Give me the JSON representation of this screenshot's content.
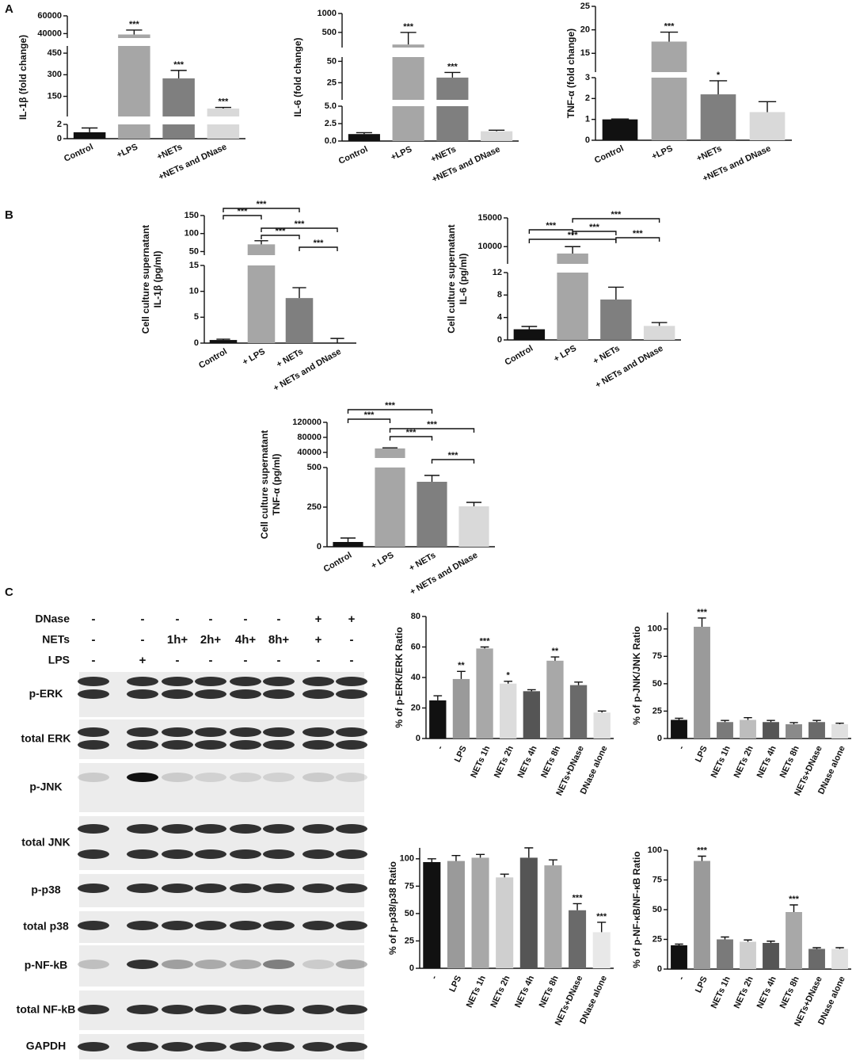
{
  "panel_labels": [
    "A",
    "B",
    "C"
  ],
  "chart_data": [
    {
      "type": "bar",
      "y_label": "IL-1β (fold change)",
      "categories": [
        "Control",
        "+LPS",
        "+NETs",
        "+NETs and DNase"
      ],
      "colors": [
        "#111111",
        "#a6a6a6",
        "#7f7f7f",
        "#d9d9d9"
      ],
      "values": [
        0.9,
        39000,
        275,
        65
      ],
      "errors": [
        0.6,
        5000,
        55,
        8
      ],
      "star_labels": [
        null,
        "***",
        "***",
        "***"
      ],
      "segments": [
        {
          "ylim": [
            0,
            2
          ],
          "yticks": [
            0,
            2
          ]
        },
        {
          "ylim": [
            10,
            500
          ],
          "yticks": [
            150,
            300,
            450
          ]
        },
        {
          "ylim": [
            35000,
            60000
          ],
          "yticks": [
            40000,
            60000
          ]
        }
      ]
    },
    {
      "type": "bar",
      "y_label": "IL-6 (fold change)",
      "categories": [
        "Control",
        "+LPS",
        "+NETs",
        "+NETs and DNase"
      ],
      "colors": [
        "#111111",
        "#a6a6a6",
        "#7f7f7f",
        "#d9d9d9"
      ],
      "values": [
        1.0,
        180,
        31,
        1.4
      ],
      "errors": [
        0.2,
        320,
        6,
        0.15
      ],
      "star_labels": [
        null,
        "***",
        "***",
        null
      ],
      "segments": [
        {
          "ylim": [
            0,
            5
          ],
          "yticks": [
            {
              "value": 0,
              "label": "0.0"
            },
            2.5,
            {
              "value": 5,
              "label": "5.0"
            }
          ]
        },
        {
          "ylim": [
            5,
            55
          ],
          "yticks": [
            25,
            50
          ]
        },
        {
          "ylim": [
            100,
            1000
          ],
          "yticks": [
            500,
            1000
          ]
        }
      ]
    },
    {
      "type": "bar",
      "y_label": "TNF-α (fold change)",
      "categories": [
        "Control",
        "+LPS",
        "+NETs",
        "+NETs and DNase"
      ],
      "colors": [
        "#111111",
        "#a6a6a6",
        "#7f7f7f",
        "#d9d9d9"
      ],
      "values": [
        1.0,
        17.5,
        2.2,
        1.35
      ],
      "errors": [
        0.02,
        2,
        0.65,
        0.5
      ],
      "star_labels": [
        null,
        "***",
        "*",
        null
      ],
      "segments": [
        {
          "ylim": [
            0,
            3
          ],
          "yticks": [
            0,
            1,
            2,
            3
          ]
        },
        {
          "ylim": [
            11,
            25
          ],
          "yticks": [
            15,
            20,
            25
          ]
        }
      ]
    },
    {
      "type": "bar",
      "y_label": [
        "Cell culture supernatant",
        "IL-1β (pg/ml)"
      ],
      "categories": [
        "Control",
        "+ LPS",
        "+ NETs",
        "+ NETs and DNase"
      ],
      "colors": [
        "#111111",
        "#a6a6a6",
        "#7f7f7f",
        "#d9d9d9"
      ],
      "values": [
        0.6,
        70,
        8.7,
        0
      ],
      "errors": [
        0.15,
        10,
        2,
        0.9
      ],
      "segments": [
        {
          "ylim": [
            0,
            15
          ],
          "yticks": [
            0,
            5,
            10,
            15
          ]
        },
        {
          "ylim": [
            40,
            150
          ],
          "yticks": [
            50,
            100,
            150
          ]
        }
      ],
      "comparisons": [
        {
          "between": [
            0,
            2
          ],
          "label": "***"
        },
        {
          "between": [
            0,
            1
          ],
          "label": "***"
        },
        {
          "between": [
            1,
            3
          ],
          "label": "***"
        },
        {
          "between": [
            1,
            2
          ],
          "label": "***"
        },
        {
          "between": [
            2,
            3
          ],
          "label": "***"
        }
      ]
    },
    {
      "type": "bar",
      "y_label": [
        "Cell culture supernatant",
        "IL-6 (pg/ml)"
      ],
      "categories": [
        "Control",
        "+ LPS",
        "+ NETs",
        "+ NETs and DNase"
      ],
      "colors": [
        "#111111",
        "#a6a6a6",
        "#7f7f7f",
        "#d9d9d9"
      ],
      "values": [
        1.9,
        8800,
        7.2,
        2.5
      ],
      "errors": [
        0.5,
        1200,
        2.2,
        0.6
      ],
      "segments": [
        {
          "ylim": [
            0,
            12
          ],
          "yticks": [
            0,
            4,
            8,
            12
          ]
        },
        {
          "ylim": [
            7000,
            15000
          ],
          "yticks": [
            10000,
            15000
          ]
        }
      ],
      "comparisons": [
        {
          "between": [
            1,
            3
          ],
          "label": "***"
        },
        {
          "between": [
            0,
            1
          ],
          "label": "***"
        },
        {
          "between": [
            1,
            2
          ],
          "label": "***"
        },
        {
          "between": [
            0,
            2
          ],
          "label": "***"
        },
        {
          "between": [
            2,
            3
          ],
          "label": "***"
        }
      ]
    },
    {
      "type": "bar",
      "y_label": [
        "Cell culture supernatant",
        "TNF-α (pg/ml)"
      ],
      "categories": [
        "Control",
        "+ LPS",
        "+ NETs",
        "+ NETs and DNase"
      ],
      "colors": [
        "#111111",
        "#a6a6a6",
        "#7f7f7f",
        "#d9d9d9"
      ],
      "values": [
        30,
        50500,
        410,
        255
      ],
      "errors": [
        25,
        1500,
        40,
        25
      ],
      "segments": [
        {
          "ylim": [
            0,
            500
          ],
          "yticks": [
            0,
            250,
            500
          ]
        },
        {
          "ylim": [
            25000,
            120000
          ],
          "yticks": [
            40000,
            80000,
            120000
          ]
        }
      ],
      "comparisons": [
        {
          "between": [
            0,
            2
          ],
          "label": "***"
        },
        {
          "between": [
            0,
            1
          ],
          "label": "***"
        },
        {
          "between": [
            1,
            3
          ],
          "label": "***"
        },
        {
          "between": [
            1,
            2
          ],
          "label": "***"
        },
        {
          "between": [
            2,
            3
          ],
          "label": "***"
        }
      ]
    },
    {
      "type": "bar",
      "y_label": "% of p-ERK/ERK Ratio",
      "categories": [
        "-",
        "LPS",
        "NETs 1h",
        "NETs 2h",
        "NETs 4h",
        "NETs 8h",
        "NETs+DNase",
        "DNase alone"
      ],
      "colors": [
        "#111111",
        "#9a9a9a",
        "#a8a8a8",
        "#dcdcdc",
        "#555555",
        "#a8a8a8",
        "#6a6a6a",
        "#e0e0e0"
      ],
      "values": [
        25,
        39,
        59,
        36,
        31,
        51,
        35,
        17
      ],
      "errors": [
        3,
        5,
        1,
        1.5,
        1,
        2.5,
        2,
        1
      ],
      "star_labels": [
        null,
        "**",
        "***",
        "*",
        null,
        "**",
        null,
        null
      ],
      "ylim": [
        0,
        80
      ],
      "yticks": [
        0,
        20,
        40,
        60,
        80
      ]
    },
    {
      "type": "bar",
      "y_label": "% of p-JNK/JNK Ratio",
      "categories": [
        "-",
        "LPS",
        "NETs 1h",
        "NETs 2h",
        "NETs 4h",
        "NETs 8h",
        "NETs+DNase",
        "DNase alone"
      ],
      "colors": [
        "#111111",
        "#9a9a9a",
        "#7a7a7a",
        "#bdbdbd",
        "#555555",
        "#8a8a8a",
        "#6a6a6a",
        "#e0e0e0"
      ],
      "values": [
        17,
        102,
        15,
        17,
        15,
        13,
        15,
        13
      ],
      "errors": [
        1.5,
        8,
        1.5,
        2,
        1.5,
        1.5,
        1.5,
        1
      ],
      "star_labels": [
        null,
        "***",
        null,
        null,
        null,
        null,
        null,
        null
      ],
      "ylim": [
        0,
        115
      ],
      "yticks": [
        0,
        25,
        50,
        75,
        100
      ]
    },
    {
      "type": "bar",
      "y_label": "% of p-p38/p38 Ratio",
      "categories": [
        "-",
        "LPS",
        "NETs 1h",
        "NETs 2h",
        "NETs 4h",
        "NETs 8h",
        "NETs+DNase",
        "DNase alone"
      ],
      "colors": [
        "#111111",
        "#9a9a9a",
        "#a8a8a8",
        "#cfcfcf",
        "#555555",
        "#a8a8a8",
        "#6a6a6a",
        "#e8e8e8"
      ],
      "values": [
        97,
        98,
        101,
        83,
        101,
        94,
        53,
        33
      ],
      "errors": [
        3,
        5,
        3,
        3,
        11,
        5,
        6,
        9
      ],
      "star_labels": [
        null,
        null,
        null,
        null,
        null,
        null,
        "***",
        "***"
      ],
      "ylim": [
        0,
        110
      ],
      "yticks": [
        0,
        25,
        50,
        75,
        100
      ]
    },
    {
      "type": "bar",
      "y_label": "% of p-NF-κB/NF-κB Ratio",
      "categories": [
        "-",
        "LPS",
        "NETs 1h",
        "NETs 2h",
        "NETs 4h",
        "NETs 8h",
        "NETs+DNase",
        "DNase alone"
      ],
      "colors": [
        "#111111",
        "#9a9a9a",
        "#7a7a7a",
        "#cfcfcf",
        "#555555",
        "#a8a8a8",
        "#6a6a6a",
        "#e0e0e0"
      ],
      "values": [
        20,
        91,
        25,
        23,
        22,
        48,
        17,
        17
      ],
      "errors": [
        1,
        4,
        2,
        1.5,
        1.5,
        6,
        1,
        1
      ],
      "star_labels": [
        null,
        "***",
        null,
        null,
        null,
        "***",
        null,
        null
      ],
      "ylim": [
        0,
        100
      ],
      "yticks": [
        0,
        25,
        50,
        75,
        100
      ]
    }
  ],
  "blot": {
    "treatments": [
      {
        "name": "DNase",
        "lanes": [
          "-",
          "-",
          "-",
          "-",
          "-",
          "-",
          "+",
          "+"
        ]
      },
      {
        "name": "NETs",
        "lanes": [
          "-",
          "-",
          "1h+",
          "2h+",
          "4h+",
          "8h+",
          "+",
          "-"
        ]
      },
      {
        "name": "LPS",
        "lanes": [
          "-",
          "+",
          "-",
          "-",
          "-",
          "-",
          "-",
          "-"
        ]
      }
    ],
    "rows": [
      "p-ERK",
      "total ERK",
      "p-JNK",
      "total JNK",
      "p-p38",
      "total p38",
      "p-NF-kB",
      "total NF-kB",
      "GAPDH"
    ]
  }
}
